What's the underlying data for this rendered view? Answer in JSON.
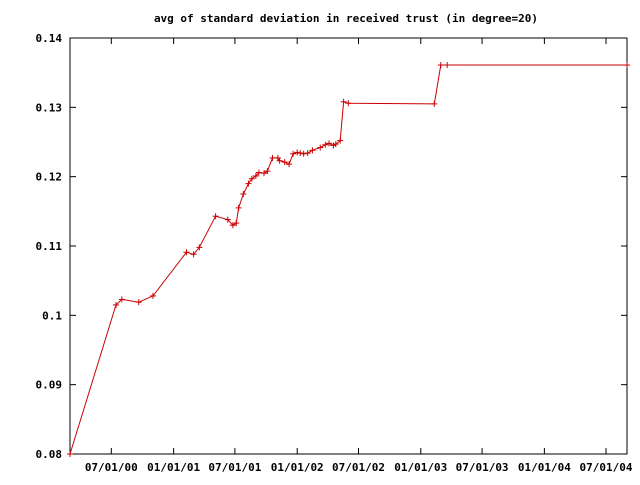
{
  "chart_data": {
    "type": "line",
    "title": "avg of standard deviation in received trust (in degree=20)",
    "xlabel": "",
    "ylabel": "",
    "ylim": [
      0.08,
      0.14
    ],
    "y_ticks": [
      0.08,
      0.09,
      0.1,
      0.11,
      0.12,
      0.13,
      0.14
    ],
    "y_tick_labels": [
      "0.08",
      "0.09",
      "0.1",
      "0.11",
      "0.12",
      "0.13",
      "0.14"
    ],
    "xlim": [
      "2000-03-01",
      "2004-09-01"
    ],
    "x_ticks": [
      "2000-07-01",
      "2001-01-01",
      "2001-07-01",
      "2002-01-01",
      "2002-07-01",
      "2003-01-01",
      "2003-07-01",
      "2004-01-01",
      "2004-07-01"
    ],
    "x_tick_labels": [
      "07/01/00",
      "01/01/01",
      "07/01/01",
      "01/01/02",
      "07/01/02",
      "01/01/03",
      "07/01/03",
      "01/01/04",
      "07/01/04"
    ],
    "grid": false,
    "line_color": "#cc0000",
    "marker": "plus",
    "series": [
      {
        "x": [
          "2000-03-01",
          "2000-07-15",
          "2000-08-01",
          "2000-09-20",
          "2000-11-01",
          "2001-02-08",
          "2001-03-01",
          "2001-03-18",
          "2001-05-05",
          "2001-06-10",
          "2001-06-25",
          "2001-07-05",
          "2001-07-12",
          "2001-07-26",
          "2001-08-10",
          "2001-08-20",
          "2001-09-01",
          "2001-09-10",
          "2001-09-25",
          "2001-10-05",
          "2001-10-20",
          "2001-11-05",
          "2001-11-10",
          "2001-11-25",
          "2001-12-08",
          "2001-12-20",
          "2002-01-01",
          "2002-01-10",
          "2002-01-20",
          "2002-02-01",
          "2002-02-15",
          "2002-03-10",
          "2002-03-25",
          "2002-04-05",
          "2002-04-18",
          "2002-04-25",
          "2002-05-08",
          "2002-05-18",
          "2002-06-01",
          "2003-02-10",
          "2003-03-01",
          "2003-03-20",
          "2004-09-01"
        ],
        "values": [
          0.08,
          0.1015,
          0.1023,
          0.1019,
          0.1028,
          0.1091,
          0.1088,
          0.1098,
          0.1143,
          0.1138,
          0.113,
          0.1133,
          0.1155,
          0.1175,
          0.119,
          0.1197,
          0.1201,
          0.1206,
          0.1205,
          0.1208,
          0.1227,
          0.1227,
          0.1223,
          0.1221,
          0.1218,
          0.1233,
          0.1235,
          0.1234,
          0.1233,
          0.1234,
          0.1238,
          0.1242,
          0.1246,
          0.1248,
          0.1245,
          0.1247,
          0.1252,
          0.1308,
          0.1306,
          0.1305,
          0.1361,
          0.1361,
          0.1361
        ]
      }
    ]
  }
}
